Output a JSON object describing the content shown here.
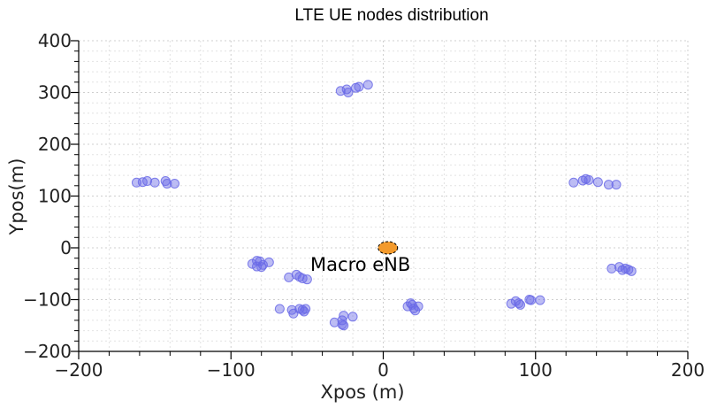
{
  "chart_data": {
    "type": "scatter",
    "title": "LTE UE nodes distribution",
    "xlabel": "Xpos (m)",
    "ylabel": "Ypos(m)",
    "xlim": [
      -200,
      200
    ],
    "ylim": [
      -200,
      400
    ],
    "xticks": [
      -200,
      -100,
      0,
      100,
      200
    ],
    "xtick_labels": [
      "−200",
      "−100",
      "0",
      "100",
      "200"
    ],
    "yticks": [
      -200,
      -100,
      0,
      100,
      200,
      300,
      400
    ],
    "ytick_labels": [
      "−200",
      "−100",
      "0",
      "100",
      "200",
      "300",
      "400"
    ],
    "grid": true,
    "series": [
      {
        "color": "#6a6ae6",
        "points": [
          [
            -28,
            303
          ],
          [
            -24,
            306
          ],
          [
            -23,
            300
          ],
          [
            -18,
            309
          ],
          [
            -16,
            311
          ],
          [
            -10,
            315
          ],
          [
            -162,
            126
          ],
          [
            -158,
            127
          ],
          [
            -155,
            129
          ],
          [
            -150,
            126
          ],
          [
            -143,
            129
          ],
          [
            -142,
            124
          ],
          [
            -137,
            124
          ],
          [
            125,
            126
          ],
          [
            131,
            130
          ],
          [
            133,
            133
          ],
          [
            135,
            131
          ],
          [
            141,
            127
          ],
          [
            148,
            122
          ],
          [
            153,
            122
          ],
          [
            -83,
            -25
          ],
          [
            -81,
            -26
          ],
          [
            -79,
            -33
          ],
          [
            -83,
            -36
          ],
          [
            -86,
            -31
          ],
          [
            -80,
            -37
          ],
          [
            -75,
            -28
          ],
          [
            -62,
            -57
          ],
          [
            -57,
            -52
          ],
          [
            -55,
            -56
          ],
          [
            -53,
            -59
          ],
          [
            -50,
            -61
          ],
          [
            -68,
            -118
          ],
          [
            -60,
            -120
          ],
          [
            -59,
            -127
          ],
          [
            -55,
            -118
          ],
          [
            -53,
            -120
          ],
          [
            -52,
            -123
          ],
          [
            -51,
            -118
          ],
          [
            -32,
            -144
          ],
          [
            -27,
            -140
          ],
          [
            -26,
            -131
          ],
          [
            -27,
            -148
          ],
          [
            -26,
            -150
          ],
          [
            -20,
            -133
          ],
          [
            16,
            -113
          ],
          [
            18,
            -107
          ],
          [
            19,
            -110
          ],
          [
            20,
            -117
          ],
          [
            21,
            -121
          ],
          [
            23,
            -113
          ],
          [
            84,
            -108
          ],
          [
            87,
            -103
          ],
          [
            89,
            -107
          ],
          [
            90,
            -110
          ],
          [
            96,
            -100
          ],
          [
            97,
            -101
          ],
          [
            103,
            -101
          ],
          [
            150,
            -40
          ],
          [
            155,
            -37
          ],
          [
            157,
            -43
          ],
          [
            159,
            -40
          ],
          [
            161,
            -42
          ],
          [
            163,
            -45
          ]
        ]
      }
    ],
    "enb": {
      "x": 3,
      "y": 0,
      "label": "Macro eNB",
      "color": "#f39a2c"
    }
  }
}
